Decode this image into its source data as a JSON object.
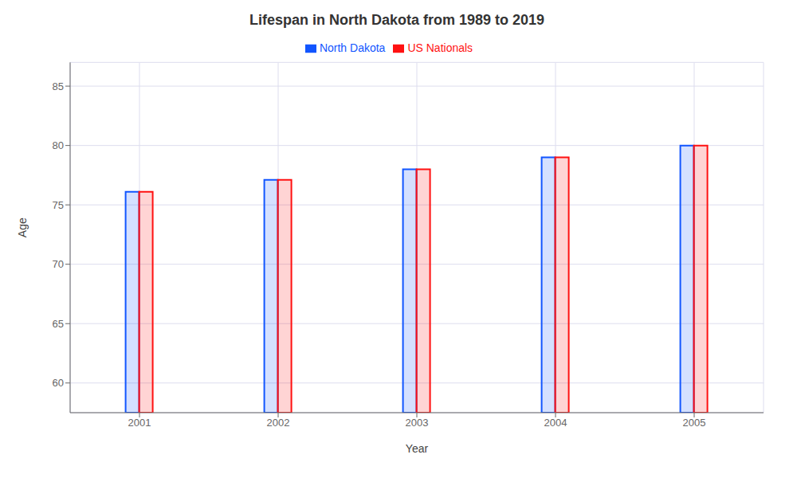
{
  "chart_data": {
    "type": "bar",
    "title": "Lifespan in North Dakota from 1989 to 2019",
    "x_label": "Year",
    "y_label": "Age",
    "categories": [
      "2001",
      "2002",
      "2003",
      "2004",
      "2005"
    ],
    "series": [
      {
        "name": "North Dakota",
        "color": "#1155FF",
        "values": [
          76.1,
          77.1,
          78.0,
          79.0,
          80.0
        ]
      },
      {
        "name": "US Nationals",
        "color": "#FF1111",
        "values": [
          76.1,
          77.1,
          78.0,
          79.0,
          80.0
        ]
      }
    ],
    "ylim": [
      57.5,
      87
    ],
    "yticks": [
      60,
      65,
      70,
      75,
      80,
      85
    ],
    "grid": true,
    "legend": "top"
  }
}
